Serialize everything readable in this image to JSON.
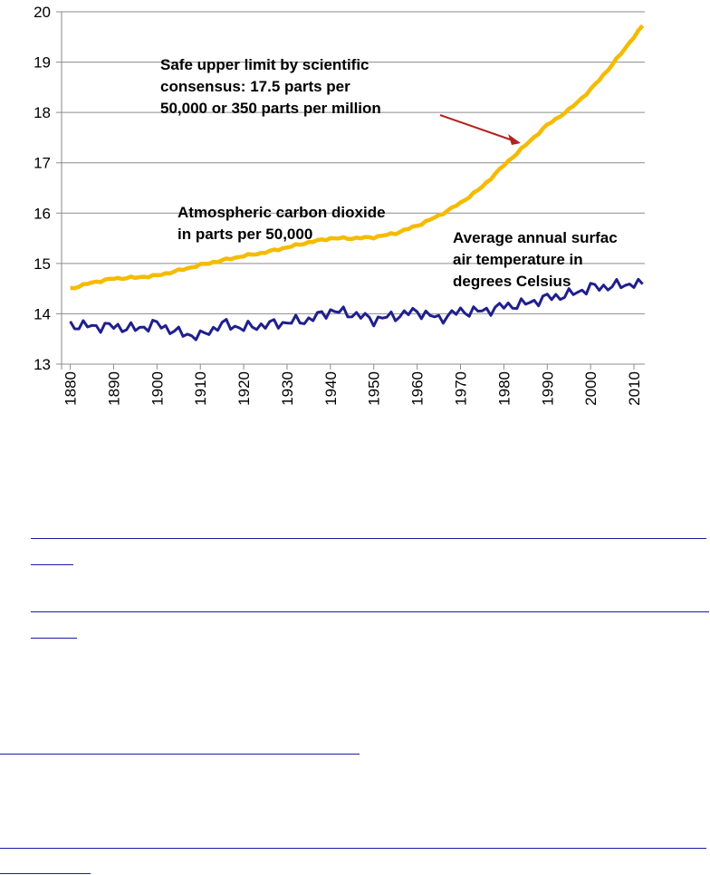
{
  "chart_data": {
    "type": "line",
    "x": [
      1880,
      1885,
      1890,
      1895,
      1900,
      1905,
      1910,
      1915,
      1920,
      1925,
      1930,
      1935,
      1940,
      1945,
      1950,
      1955,
      1960,
      1965,
      1970,
      1975,
      1980,
      1985,
      1990,
      1995,
      2000,
      2005,
      2010,
      2012
    ],
    "series": [
      {
        "color": "#F5BB00",
        "values": [
          14.5,
          14.62,
          14.7,
          14.72,
          14.76,
          14.86,
          14.97,
          15.06,
          15.15,
          15.22,
          15.32,
          15.42,
          15.5,
          15.5,
          15.52,
          15.6,
          15.75,
          15.95,
          16.2,
          16.52,
          16.95,
          17.35,
          17.75,
          18.05,
          18.45,
          18.95,
          19.5,
          19.72
        ]
      },
      {
        "color": "#1F1F8F",
        "values": [
          13.78,
          13.75,
          13.75,
          13.7,
          13.8,
          13.62,
          13.55,
          13.8,
          13.72,
          13.78,
          13.83,
          13.88,
          14.06,
          14.0,
          13.88,
          13.96,
          14.05,
          13.9,
          14.05,
          14.05,
          14.15,
          14.2,
          14.32,
          14.38,
          14.52,
          14.55,
          14.6,
          14.56
        ]
      }
    ],
    "ylim": [
      13,
      20
    ],
    "yticks": [
      "13",
      "14",
      "15",
      "16",
      "17",
      "18",
      "19",
      "20"
    ],
    "xticks": [
      "1880",
      "1890",
      "1900",
      "1910",
      "1920",
      "1930",
      "1940",
      "1950",
      "1960",
      "1970",
      "1980",
      "1990",
      "2000",
      "2010"
    ],
    "grid": true,
    "annotations": [
      {
        "id": "safe-limit-note",
        "lines": [
          "Safe upper limit by scientific",
          "consensus: 17.5 parts per",
          "50,000 or 350 parts per million"
        ]
      },
      {
        "id": "co2-label",
        "lines": [
          "Atmospheric carbon dioxide",
          "in parts per 50,000"
        ]
      },
      {
        "id": "temp-label",
        "lines": [
          "Average annual surfac",
          "air temperature in",
          "degrees Celsius"
        ]
      }
    ],
    "arrow": {
      "from_year": 1966,
      "from_value": 17.9,
      "to_year": 1984,
      "to_value": 17.4,
      "color": "#B22222"
    }
  }
}
